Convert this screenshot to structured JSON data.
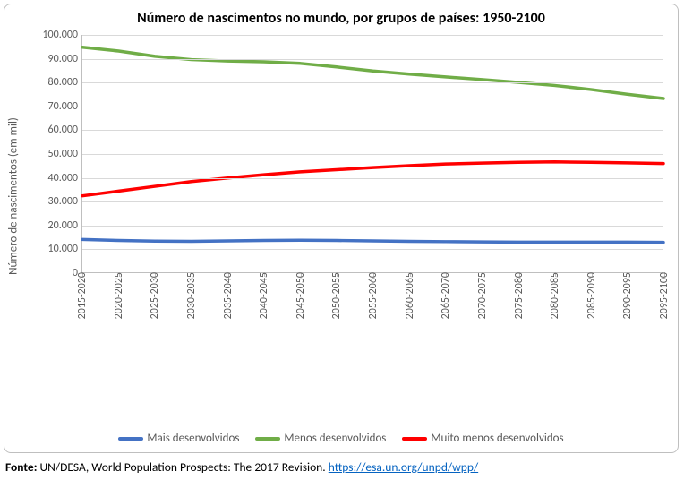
{
  "chart": {
    "type": "line",
    "title": "Número de nascimentos no mundo, por grupos de países: 1950-2100",
    "title_fontsize": 16,
    "ylabel": "Número de nascimentos (em mil)",
    "label_fontsize": 13,
    "ylim": [
      0,
      100000
    ],
    "ytick_step": 10000,
    "y_ticks": [
      "0",
      "10.000",
      "20.000",
      "30.000",
      "40.000",
      "50.000",
      "60.000",
      "70.000",
      "80.000",
      "90.000",
      "100.000"
    ],
    "categories": [
      "2015-2020",
      "2020-2025",
      "2025-2030",
      "2030-2035",
      "2035-2040",
      "2040-2045",
      "2045-2050",
      "2050-2055",
      "2055-2060",
      "2060-2065",
      "2065-2070",
      "2070-2075",
      "2075-2080",
      "2080-2085",
      "2085-2090",
      "2090-2095",
      "2095-2100"
    ],
    "series": [
      {
        "name": "Mais desenvolvidos",
        "color": "#4472c4",
        "line_width": 3.5,
        "values": [
          13800,
          13400,
          13100,
          13000,
          13200,
          13400,
          13500,
          13400,
          13200,
          13000,
          12900,
          12800,
          12700,
          12700,
          12700,
          12700,
          12600
        ]
      },
      {
        "name": "Menos desenvolvidos",
        "color": "#70ad47",
        "line_width": 3.5,
        "values": [
          94800,
          93200,
          91000,
          89600,
          89000,
          88700,
          88000,
          86500,
          84800,
          83500,
          82300,
          81200,
          80000,
          78700,
          77000,
          75000,
          73200
        ]
      },
      {
        "name": "Muito menos desenvolvidos",
        "color": "#ff0000",
        "line_width": 3.5,
        "values": [
          32200,
          34200,
          36200,
          38200,
          39700,
          41100,
          42300,
          43200,
          44100,
          44900,
          45600,
          46000,
          46300,
          46500,
          46300,
          46100,
          45800
        ]
      }
    ],
    "background_color": "#ffffff",
    "grid_color": "#d9d9d9",
    "border_color": "#bfbfbf",
    "tick_color": "#595959",
    "tick_fontsize": 12,
    "legend_fontsize": 13
  },
  "source": {
    "prefix": "Fonte:",
    "text": " UN/DESA, World Population Prospects: The 2017 Revision. ",
    "link_text": "https://esa.un.org/unpd/wpp/",
    "link_href": "https://esa.un.org/unpd/wpp/"
  }
}
